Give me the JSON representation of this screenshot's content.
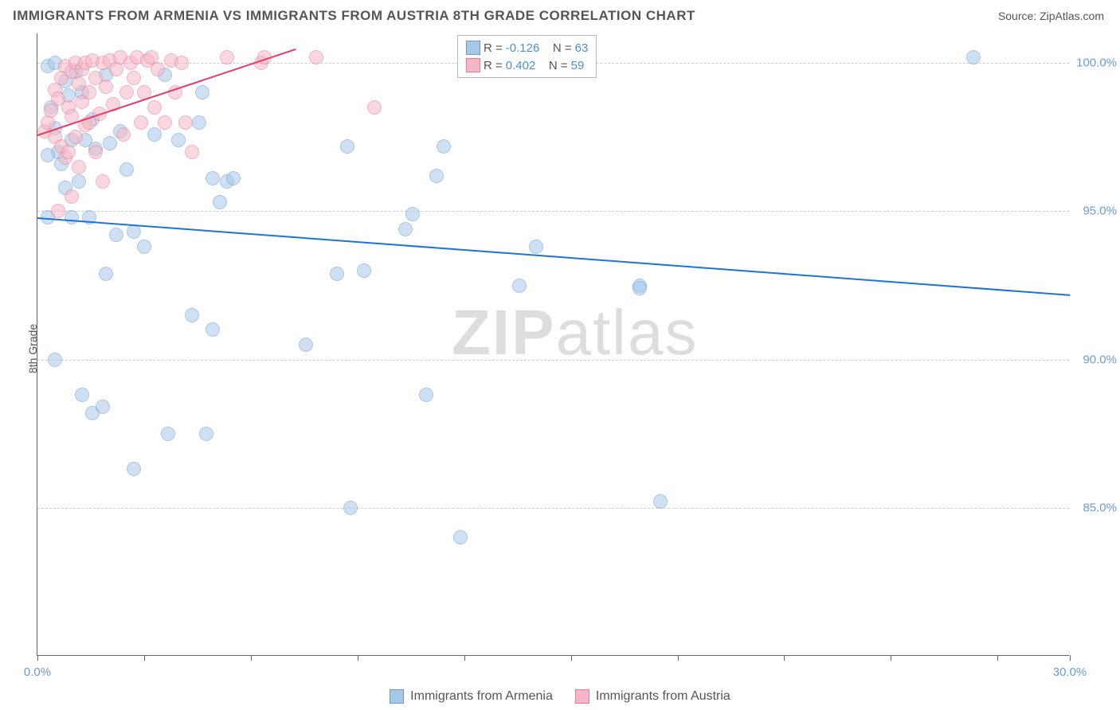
{
  "header": {
    "title": "IMMIGRANTS FROM ARMENIA VS IMMIGRANTS FROM AUSTRIA 8TH GRADE CORRELATION CHART",
    "source": "Source: ZipAtlas.com"
  },
  "chart": {
    "type": "scatter",
    "ylabel": "8th Grade",
    "xlim": [
      0,
      30
    ],
    "ylim": [
      80,
      101
    ],
    "xtick_positions": [
      0,
      3.1,
      6.2,
      9.3,
      12.4,
      15.5,
      18.6,
      21.7,
      24.8,
      27.9,
      30
    ],
    "xtick_labels": {
      "0": "0.0%",
      "30": "30.0%"
    },
    "ytick_positions": [
      85,
      90,
      95,
      100
    ],
    "ytick_labels": [
      "85.0%",
      "90.0%",
      "95.0%",
      "100.0%"
    ],
    "background_color": "#ffffff",
    "grid_color": "#cccccc",
    "axis_color": "#666666",
    "marker_radius": 9,
    "marker_opacity": 0.55,
    "watermark": "ZIPatlas",
    "series": [
      {
        "name": "Immigrants from Armenia",
        "color_fill": "#a7c7e7",
        "color_stroke": "#6b9bd1",
        "trend_color": "#1e73d8",
        "R": "-0.126",
        "N": "63",
        "trend": {
          "x1": 0,
          "y1": 94.8,
          "x2": 30,
          "y2": 92.2
        },
        "points": [
          [
            0.3,
            99.9
          ],
          [
            0.5,
            100.0
          ],
          [
            0.8,
            99.4
          ],
          [
            1.1,
            99.7
          ],
          [
            0.4,
            98.5
          ],
          [
            0.9,
            98.9
          ],
          [
            1.3,
            99.0
          ],
          [
            1.0,
            97.4
          ],
          [
            0.6,
            97.0
          ],
          [
            1.6,
            98.1
          ],
          [
            2.0,
            99.6
          ],
          [
            2.1,
            97.3
          ],
          [
            0.3,
            96.9
          ],
          [
            0.7,
            96.6
          ],
          [
            0.8,
            95.8
          ],
          [
            1.0,
            94.8
          ],
          [
            1.4,
            97.4
          ],
          [
            1.7,
            97.1
          ],
          [
            2.4,
            97.7
          ],
          [
            2.6,
            96.4
          ],
          [
            2.3,
            94.2
          ],
          [
            2.8,
            94.3
          ],
          [
            3.4,
            97.6
          ],
          [
            3.7,
            99.6
          ],
          [
            4.1,
            97.4
          ],
          [
            4.7,
            98.0
          ],
          [
            4.8,
            99.0
          ],
          [
            5.1,
            96.1
          ],
          [
            5.3,
            95.3
          ],
          [
            5.5,
            96.0
          ],
          [
            5.7,
            96.1
          ],
          [
            4.5,
            91.5
          ],
          [
            5.1,
            91.0
          ],
          [
            3.1,
            93.8
          ],
          [
            1.3,
            88.8
          ],
          [
            1.6,
            88.2
          ],
          [
            1.9,
            88.4
          ],
          [
            0.5,
            90.0
          ],
          [
            2.0,
            92.9
          ],
          [
            1.5,
            94.8
          ],
          [
            2.8,
            86.3
          ],
          [
            3.8,
            87.5
          ],
          [
            4.9,
            87.5
          ],
          [
            7.8,
            90.5
          ],
          [
            8.7,
            92.9
          ],
          [
            9.0,
            97.2
          ],
          [
            9.5,
            93.0
          ],
          [
            10.7,
            94.4
          ],
          [
            10.9,
            94.9
          ],
          [
            11.3,
            88.8
          ],
          [
            11.6,
            96.2
          ],
          [
            11.8,
            97.2
          ],
          [
            12.3,
            84.0
          ],
          [
            9.1,
            85.0
          ],
          [
            14.0,
            92.5
          ],
          [
            14.5,
            93.8
          ],
          [
            17.5,
            92.5
          ],
          [
            18.1,
            85.2
          ],
          [
            17.5,
            92.4
          ],
          [
            27.2,
            100.2
          ],
          [
            0.3,
            94.8
          ],
          [
            1.2,
            96.0
          ],
          [
            0.5,
            97.8
          ]
        ]
      },
      {
        "name": "Immigrants from Austria",
        "color_fill": "#f5b7c5",
        "color_stroke": "#e77a95",
        "trend_color": "#e23b6a",
        "R": "0.402",
        "N": "59",
        "trend": {
          "x1": 0,
          "y1": 97.6,
          "x2": 7.5,
          "y2": 100.5
        },
        "points": [
          [
            0.2,
            97.7
          ],
          [
            0.3,
            98.0
          ],
          [
            0.4,
            98.4
          ],
          [
            0.5,
            97.5
          ],
          [
            0.5,
            99.1
          ],
          [
            0.6,
            98.8
          ],
          [
            0.7,
            99.5
          ],
          [
            0.7,
            97.2
          ],
          [
            0.8,
            99.9
          ],
          [
            0.8,
            96.8
          ],
          [
            0.9,
            97.0
          ],
          [
            0.9,
            98.5
          ],
          [
            1.0,
            99.7
          ],
          [
            1.0,
            98.2
          ],
          [
            1.1,
            100.0
          ],
          [
            1.1,
            97.5
          ],
          [
            1.2,
            99.3
          ],
          [
            1.2,
            96.5
          ],
          [
            1.3,
            98.7
          ],
          [
            1.3,
            99.8
          ],
          [
            1.4,
            97.9
          ],
          [
            1.4,
            100.0
          ],
          [
            1.5,
            98.0
          ],
          [
            1.5,
            99.0
          ],
          [
            1.6,
            100.1
          ],
          [
            1.7,
            97.0
          ],
          [
            1.7,
            99.5
          ],
          [
            1.8,
            98.3
          ],
          [
            1.9,
            100.0
          ],
          [
            1.9,
            96.0
          ],
          [
            2.0,
            99.2
          ],
          [
            2.1,
            100.1
          ],
          [
            2.2,
            98.6
          ],
          [
            2.3,
            99.8
          ],
          [
            2.4,
            100.2
          ],
          [
            2.5,
            97.6
          ],
          [
            2.6,
            99.0
          ],
          [
            2.7,
            100.0
          ],
          [
            2.8,
            99.5
          ],
          [
            2.9,
            100.2
          ],
          [
            3.0,
            98.0
          ],
          [
            3.1,
            99.0
          ],
          [
            3.2,
            100.1
          ],
          [
            3.3,
            100.2
          ],
          [
            3.4,
            98.5
          ],
          [
            3.5,
            99.8
          ],
          [
            3.7,
            98.0
          ],
          [
            3.9,
            100.1
          ],
          [
            4.0,
            99.0
          ],
          [
            4.2,
            100.0
          ],
          [
            4.3,
            98.0
          ],
          [
            4.5,
            97.0
          ],
          [
            5.5,
            100.2
          ],
          [
            6.5,
            100.0
          ],
          [
            6.6,
            100.2
          ],
          [
            8.1,
            100.2
          ],
          [
            9.8,
            98.5
          ],
          [
            1.0,
            95.5
          ],
          [
            0.6,
            95.0
          ]
        ]
      }
    ],
    "legend_bottom": [
      {
        "label": "Immigrants from Armenia",
        "fill": "#a7c7e7",
        "stroke": "#6b9bd1"
      },
      {
        "label": "Immigrants from Austria",
        "fill": "#f5b7c5",
        "stroke": "#e77a95"
      }
    ]
  }
}
